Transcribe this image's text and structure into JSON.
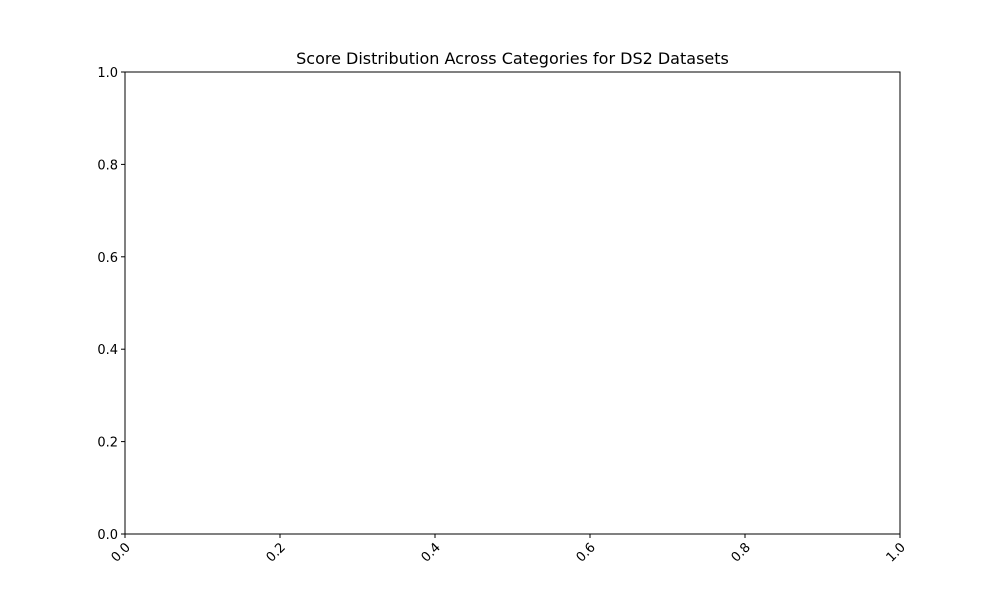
{
  "chart_data": {
    "type": "bar",
    "title": "Score Distribution Across Categories for DS2 Datasets",
    "xlabel": "",
    "ylabel": "",
    "xlim": [
      0.0,
      1.0
    ],
    "ylim": [
      0.0,
      1.0
    ],
    "x_ticks": [
      "0.0",
      "0.2",
      "0.4",
      "0.6",
      "0.8",
      "1.0"
    ],
    "y_ticks": [
      "0.0",
      "0.2",
      "0.4",
      "0.6",
      "0.8",
      "1.0"
    ],
    "x_tick_rotation_deg": 45,
    "series": [],
    "grid": false,
    "legend": "none"
  },
  "colors": {
    "axis": "#000000",
    "background": "#ffffff"
  }
}
